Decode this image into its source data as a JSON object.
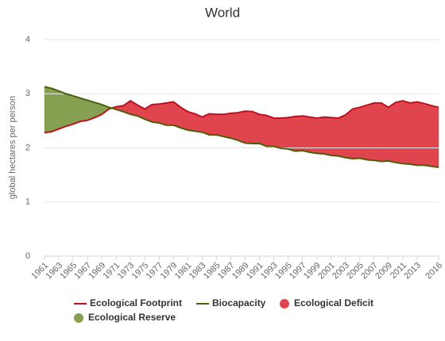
{
  "chart_data": {
    "type": "line",
    "title": "World",
    "ylabel": "global hectares per person",
    "x": [
      1961,
      1962,
      1963,
      1964,
      1965,
      1966,
      1967,
      1968,
      1969,
      1970,
      1971,
      1972,
      1973,
      1974,
      1975,
      1976,
      1977,
      1978,
      1979,
      1980,
      1981,
      1982,
      1983,
      1984,
      1985,
      1986,
      1987,
      1988,
      1989,
      1990,
      1991,
      1992,
      1993,
      1994,
      1995,
      1996,
      1997,
      1998,
      1999,
      2000,
      2001,
      2002,
      2003,
      2004,
      2005,
      2006,
      2007,
      2008,
      2009,
      2010,
      2011,
      2012,
      2013,
      2014,
      2015,
      2016
    ],
    "xlim": [
      1961,
      2016
    ],
    "xticks": [
      1961,
      1963,
      1965,
      1967,
      1969,
      1971,
      1973,
      1975,
      1977,
      1979,
      1981,
      1983,
      1985,
      1987,
      1989,
      1991,
      1993,
      1995,
      1997,
      1999,
      2001,
      2003,
      2005,
      2007,
      2009,
      2011,
      2013,
      2016
    ],
    "ylim": [
      0,
      4
    ],
    "yticks": [
      0,
      1,
      2,
      3,
      4
    ],
    "grid": true,
    "series": [
      {
        "name": "Ecological Footprint",
        "color": "#c0101e",
        "values": [
          2.28,
          2.3,
          2.35,
          2.4,
          2.44,
          2.49,
          2.51,
          2.56,
          2.62,
          2.72,
          2.76,
          2.78,
          2.87,
          2.79,
          2.72,
          2.8,
          2.81,
          2.83,
          2.85,
          2.75,
          2.67,
          2.63,
          2.57,
          2.63,
          2.62,
          2.62,
          2.64,
          2.65,
          2.68,
          2.67,
          2.62,
          2.6,
          2.55,
          2.55,
          2.56,
          2.58,
          2.59,
          2.57,
          2.55,
          2.57,
          2.56,
          2.55,
          2.61,
          2.72,
          2.75,
          2.79,
          2.83,
          2.83,
          2.75,
          2.84,
          2.87,
          2.83,
          2.85,
          2.82,
          2.78,
          2.75
        ]
      },
      {
        "name": "Biocapacity",
        "color": "#4a5e0b",
        "values": [
          3.13,
          3.1,
          3.05,
          3.0,
          2.96,
          2.92,
          2.88,
          2.84,
          2.8,
          2.75,
          2.71,
          2.67,
          2.62,
          2.59,
          2.53,
          2.48,
          2.46,
          2.42,
          2.42,
          2.37,
          2.33,
          2.31,
          2.29,
          2.24,
          2.24,
          2.21,
          2.18,
          2.14,
          2.09,
          2.08,
          2.08,
          2.03,
          2.03,
          1.99,
          1.98,
          1.94,
          1.95,
          1.92,
          1.9,
          1.89,
          1.86,
          1.85,
          1.82,
          1.8,
          1.81,
          1.78,
          1.77,
          1.75,
          1.76,
          1.73,
          1.71,
          1.7,
          1.68,
          1.68,
          1.66,
          1.64
        ]
      }
    ],
    "areas": [
      {
        "name": "Ecological Deficit",
        "color": "#e0454e"
      },
      {
        "name": "Ecological Reserve",
        "color": "#86a052"
      }
    ]
  }
}
